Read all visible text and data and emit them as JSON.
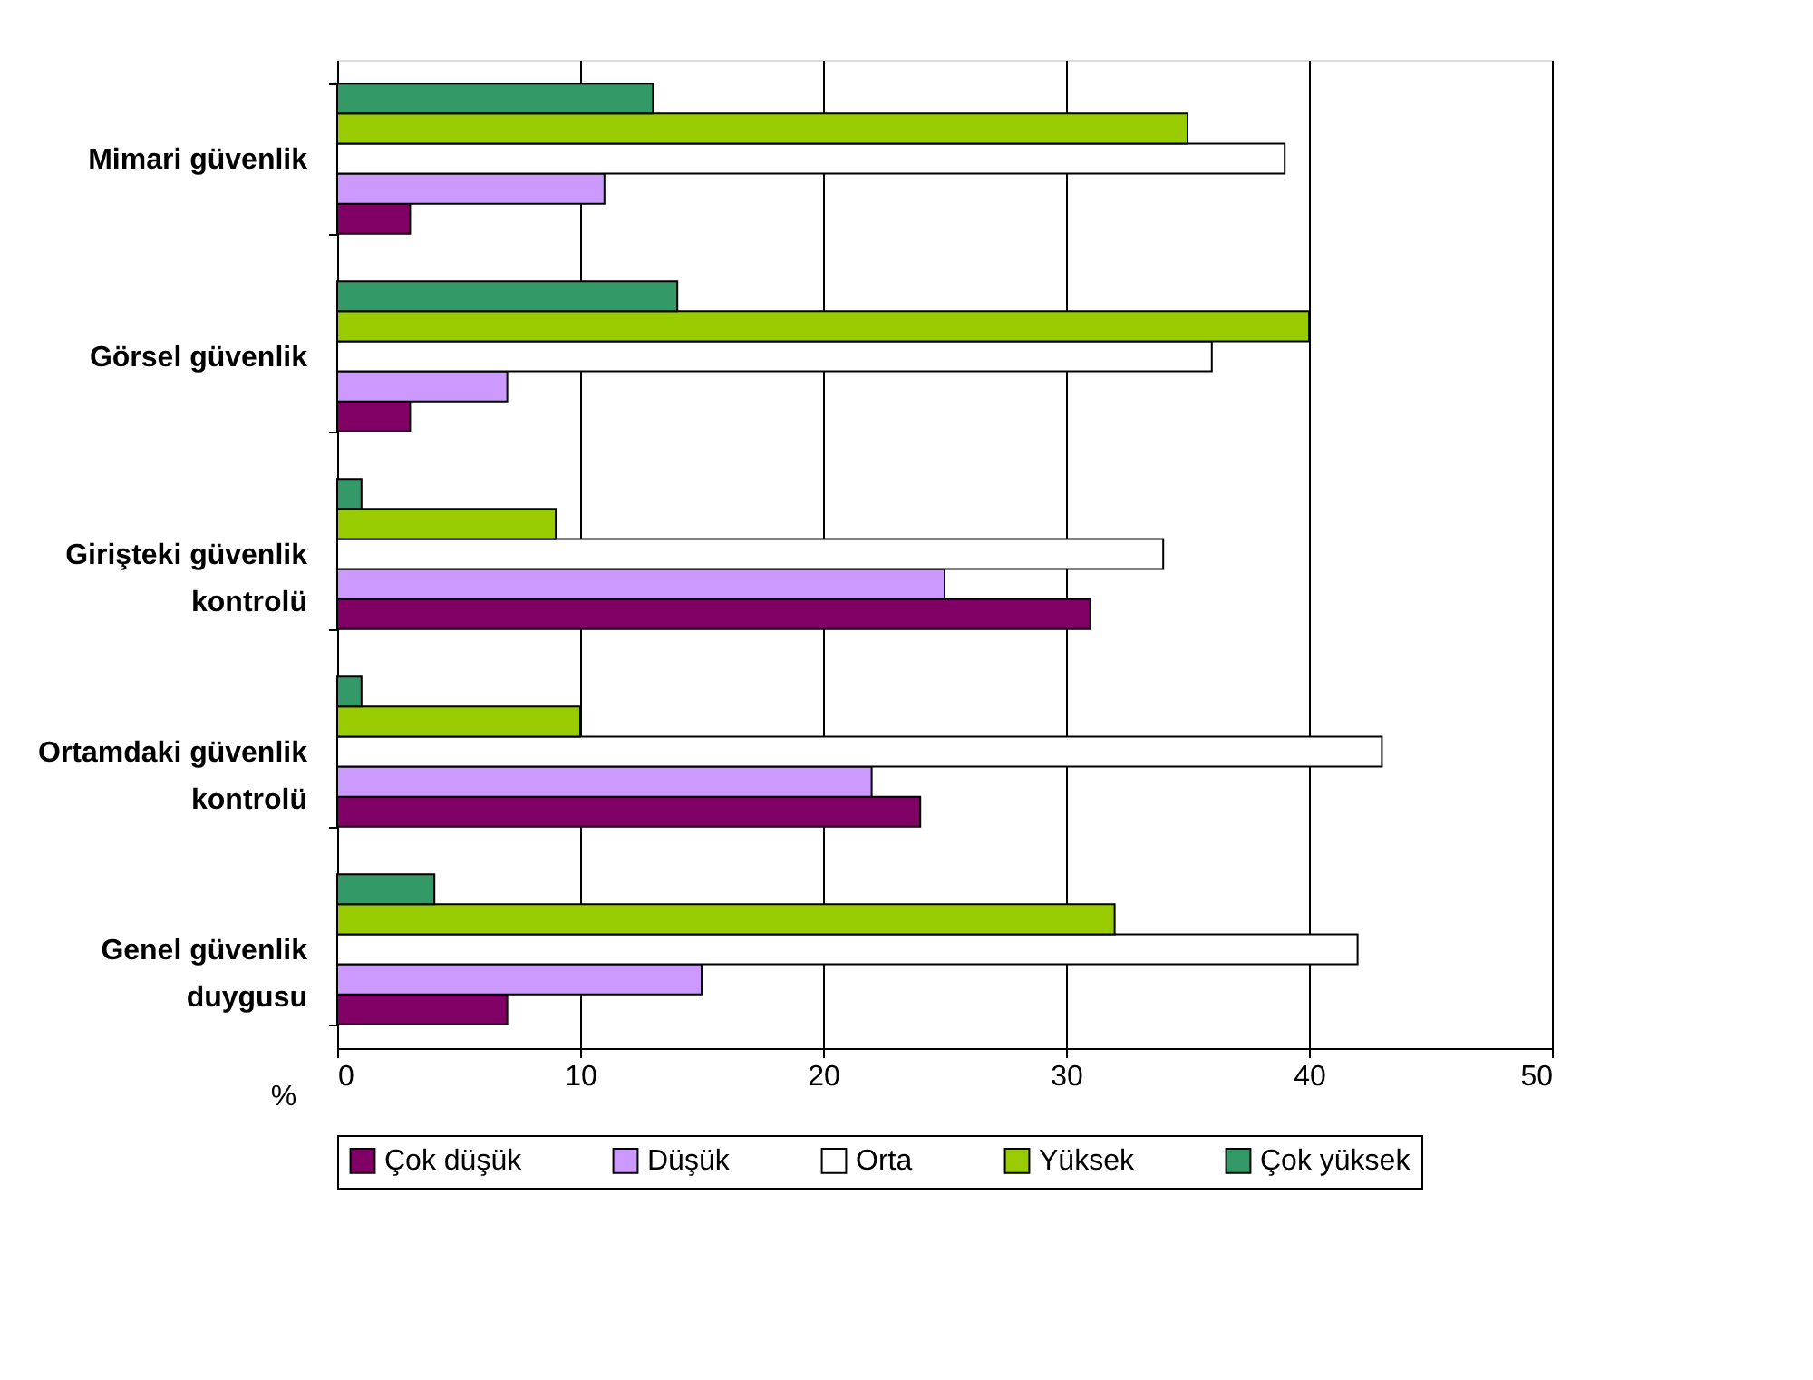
{
  "chart_data": {
    "type": "bar",
    "orientation": "horizontal",
    "xlabel": "%",
    "categories": [
      "Mimari güvenlik",
      "Görsel güvenlik",
      "Girişteki güvenlik kontrolü",
      "Ortamdaki güvenlik kontrolü",
      "Genel güvenlik duygusu"
    ],
    "series": [
      {
        "name": "Çok düşük",
        "color": "#800066",
        "values": [
          3,
          3,
          31,
          24,
          7
        ]
      },
      {
        "name": "Düşük",
        "color": "#cc99ff",
        "values": [
          11,
          7,
          25,
          22,
          15
        ]
      },
      {
        "name": "Orta",
        "color": "#ffffff",
        "values": [
          39,
          36,
          34,
          43,
          42
        ]
      },
      {
        "name": "Yüksek",
        "color": "#99cc00",
        "values": [
          35,
          40,
          9,
          10,
          32
        ]
      },
      {
        "name": "Çok yüksek",
        "color": "#339966",
        "values": [
          13,
          14,
          1,
          1,
          4
        ]
      }
    ],
    "xlim": [
      0,
      50
    ],
    "xticks": [
      0,
      10,
      20,
      30,
      40,
      50
    ],
    "grid": "x",
    "legend": "bottom"
  }
}
